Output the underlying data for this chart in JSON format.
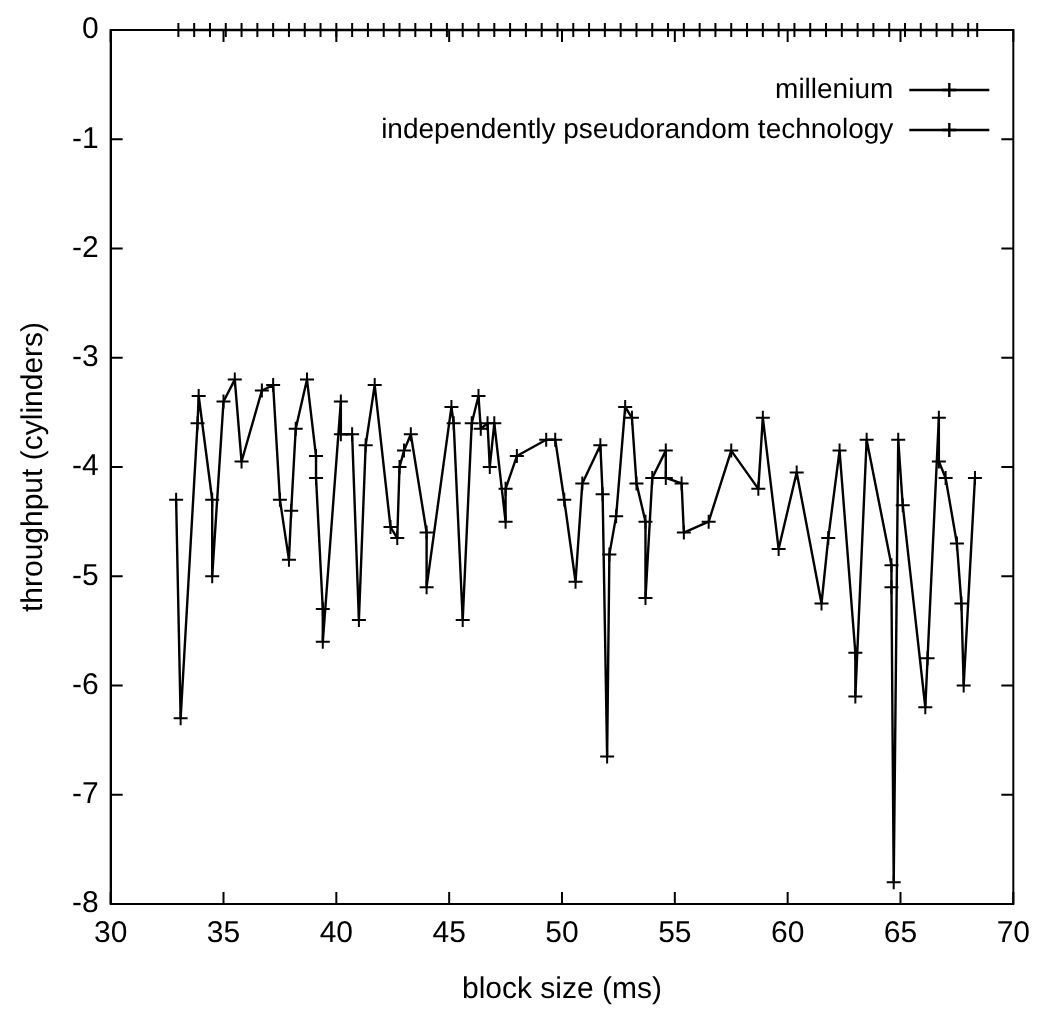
{
  "chart_data": {
    "type": "line",
    "xlabel": "block size (ms)",
    "ylabel": "throughput (cylinders)",
    "xlim": [
      30,
      70
    ],
    "xticks": [
      30,
      35,
      40,
      45,
      50,
      55,
      60,
      65,
      70
    ],
    "ylim": [
      -8,
      0
    ],
    "yticks": [
      -8,
      -7,
      -6,
      -5,
      -4,
      -3,
      -2,
      -1,
      0
    ],
    "grid": false,
    "legend": "top right",
    "marker": "cross",
    "line_style": "solid",
    "series": [
      {
        "name": "millenium",
        "color": "#000000",
        "x": [
          32.9,
          33.1,
          33.85,
          33.9,
          34.5,
          34.5,
          35.0,
          35.5,
          35.8,
          36.7,
          37.2,
          37.5,
          37.9,
          38.0,
          38.2,
          38.7,
          39.1,
          39.1,
          39.4,
          39.4,
          40.2,
          40.2,
          40.7,
          41.0,
          41.3,
          41.7,
          42.4,
          42.7,
          42.8,
          43.0,
          43.3,
          44.0,
          44.0,
          45.1,
          45.2,
          45.6,
          46.0,
          46.3,
          46.4,
          46.7,
          46.8,
          47.0,
          47.5,
          47.5,
          48.0,
          49.3,
          49.7,
          50.1,
          50.6,
          50.9,
          51.7,
          51.8,
          52.0,
          52.1,
          52.4,
          52.8,
          53.1,
          53.3,
          53.7,
          53.7,
          54.0,
          54.6,
          54.6,
          55.3,
          55.4,
          56.5,
          57.5,
          58.7,
          58.9,
          59.6,
          60.4,
          61.5,
          61.8,
          62.3,
          63.0,
          63.0,
          63.5,
          64.6,
          64.6,
          64.7,
          64.9,
          65.1,
          66.1,
          66.2,
          66.7,
          66.7,
          67.0,
          67.5,
          67.7,
          67.8,
          68.3
        ],
        "values": [
          -4.3,
          -6.3,
          -3.6,
          -3.35,
          -4.3,
          -5.0,
          -3.4,
          -3.2,
          -3.95,
          -3.3,
          -3.25,
          -4.3,
          -4.85,
          -4.4,
          -3.65,
          -3.2,
          -3.9,
          -4.1,
          -5.3,
          -5.6,
          -3.4,
          -3.7,
          -3.7,
          -5.4,
          -3.8,
          -3.25,
          -4.55,
          -4.65,
          -4.0,
          -3.85,
          -3.7,
          -4.6,
          -5.1,
          -3.45,
          -3.6,
          -5.4,
          -3.6,
          -3.35,
          -3.65,
          -3.6,
          -4.0,
          -3.6,
          -4.5,
          -4.2,
          -3.9,
          -3.75,
          -3.75,
          -4.3,
          -5.05,
          -4.15,
          -3.8,
          -4.25,
          -6.65,
          -4.8,
          -4.45,
          -3.45,
          -3.55,
          -4.15,
          -4.5,
          -5.2,
          -4.1,
          -3.85,
          -4.1,
          -4.15,
          -4.6,
          -4.5,
          -3.85,
          -4.2,
          -3.55,
          -4.75,
          -4.05,
          -5.25,
          -4.65,
          -3.85,
          -5.7,
          -6.1,
          -3.75,
          -4.9,
          -5.1,
          -7.8,
          -3.75,
          -4.35,
          -6.2,
          -5.75,
          -3.55,
          -3.95,
          -4.1,
          -4.7,
          -5.25,
          -6.0,
          -4.1
        ]
      },
      {
        "name": "independently pseudorandom technology",
        "color": "#000000",
        "x": [
          33.0,
          33.7,
          34.4,
          35.1,
          35.8,
          36.5,
          37.2,
          37.9,
          38.6,
          39.3,
          40.0,
          40.7,
          41.4,
          42.1,
          42.8,
          43.5,
          44.2,
          44.9,
          45.6,
          46.3,
          47.0,
          47.7,
          48.4,
          49.1,
          49.8,
          50.5,
          51.2,
          51.9,
          52.6,
          53.3,
          54.0,
          54.7,
          55.4,
          56.1,
          56.8,
          57.5,
          58.2,
          58.9,
          59.6,
          60.3,
          61.0,
          61.7,
          62.4,
          63.1,
          63.8,
          64.5,
          65.2,
          65.9,
          66.6,
          67.3,
          68.0,
          68.4
        ],
        "values": [
          0,
          0,
          0,
          0,
          0,
          0,
          0,
          0,
          0,
          0,
          0,
          0,
          0,
          0,
          0,
          0,
          0,
          0,
          0,
          0,
          0,
          0,
          0,
          0,
          0,
          0,
          0,
          0,
          0,
          0,
          0,
          0,
          0,
          0,
          0,
          0,
          0,
          0,
          0,
          0,
          0,
          0,
          0,
          0,
          0,
          0,
          0,
          0,
          0,
          0,
          0,
          0
        ]
      }
    ]
  }
}
